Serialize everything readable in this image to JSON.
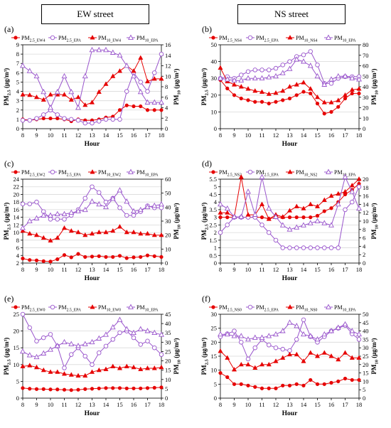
{
  "headers": {
    "left": "EW street",
    "right": "NS street"
  },
  "chart_data": [
    {
      "id": "a",
      "panel_label": "(a)",
      "type": "line",
      "x": [
        8,
        8.5,
        9,
        9.5,
        10,
        10.5,
        11,
        11.5,
        12,
        12.5,
        13,
        13.5,
        14,
        14.5,
        15,
        15.5,
        16,
        16.5,
        17,
        17.5,
        18
      ],
      "xlabel": "Hour",
      "ylabel_left": [
        "PM",
        "2.5",
        " (μg/m³)"
      ],
      "ylabel_right": [
        "PM",
        "10",
        " (μg/m³)"
      ],
      "ylim_left": [
        0,
        9
      ],
      "yticks_left": [
        0,
        1,
        2,
        3,
        4,
        5,
        6,
        7,
        8,
        9
      ],
      "ylim_right": [
        0,
        16
      ],
      "yticks_right": [
        0,
        2,
        4,
        6,
        8,
        10,
        12,
        14,
        16
      ],
      "legend": [
        [
          "PM",
          "2.5_EW4"
        ],
        [
          "PM",
          "2.5_EPA"
        ],
        [
          "PM",
          "10_EW4"
        ],
        [
          "PM",
          "10_EPA"
        ]
      ],
      "series": [
        {
          "color": "#e60000",
          "marker": "dot",
          "axis": "left",
          "values": [
            1.0,
            0.9,
            1.0,
            1.1,
            1.1,
            1.1,
            1.0,
            0.8,
            1.0,
            0.9,
            0.9,
            1.0,
            1.2,
            1.3,
            2.0,
            2.5,
            2.4,
            2.4,
            2.0,
            2.0,
            2.0
          ]
        },
        {
          "color": "#9955cc",
          "marker": "circle",
          "axis": "left",
          "values": [
            0.9,
            0.9,
            1.1,
            1.5,
            2.0,
            1.5,
            1.1,
            1.0,
            0.9,
            0.6,
            0.6,
            0.8,
            1.0,
            1.0,
            1.0,
            4.0,
            6.0,
            5.0,
            4.0,
            6.0,
            8.0
          ]
        },
        {
          "color": "#e60000",
          "marker": "triangle",
          "axis": "right",
          "values": [
            6.5,
            6.4,
            6.0,
            5.5,
            6.5,
            6.5,
            6.5,
            5.5,
            6.0,
            4.5,
            5.0,
            7.0,
            8.5,
            10.0,
            11.0,
            12.0,
            11.0,
            13.5,
            9.0,
            9.5,
            9.5
          ]
        },
        {
          "color": "#9955cc",
          "marker": "triangle-open",
          "axis": "right",
          "values": [
            12.0,
            11.0,
            10.0,
            7.0,
            4.0,
            7.0,
            10.0,
            7.0,
            4.0,
            10.0,
            15.0,
            15.0,
            15.0,
            14.5,
            14.0,
            12.0,
            10.0,
            7.0,
            5.0,
            5.0,
            5.0
          ]
        }
      ]
    },
    {
      "id": "b",
      "panel_label": "(b)",
      "type": "line",
      "x": [
        8,
        8.5,
        9,
        9.5,
        10,
        10.5,
        11,
        11.5,
        12,
        12.5,
        13,
        13.5,
        14,
        14.5,
        15,
        15.5,
        16,
        16.5,
        17,
        17.5,
        18
      ],
      "xlabel": "Hour",
      "ylabel_left": [
        "PM",
        "2.5",
        " (μg/m³)"
      ],
      "ylabel_right": [
        "PM",
        "10",
        " (μg/m³)"
      ],
      "ylim_left": [
        0,
        50
      ],
      "yticks_left": [
        0,
        10,
        20,
        30,
        40,
        50
      ],
      "ylim_right": [
        0,
        80
      ],
      "yticks_right": [
        0,
        10,
        20,
        30,
        40,
        50,
        60,
        70,
        80
      ],
      "legend": [
        [
          "PM",
          "2.5_NS4"
        ],
        [
          "PM",
          "2.5_EPA"
        ],
        [
          "PM",
          "10_NS4"
        ],
        [
          "PM",
          "10_EPA"
        ]
      ],
      "series": [
        {
          "color": "#e60000",
          "marker": "dot",
          "axis": "left",
          "values": [
            29,
            24,
            20,
            18,
            17,
            16,
            16,
            15,
            16,
            17,
            18,
            20,
            22,
            21,
            15,
            9,
            10,
            13,
            18,
            21,
            21
          ]
        },
        {
          "color": "#9955cc",
          "marker": "circle",
          "axis": "left",
          "values": [
            30,
            31,
            30,
            32,
            34,
            35,
            35,
            35,
            36,
            38,
            40,
            43,
            44,
            46,
            38,
            27,
            27,
            30,
            31,
            31,
            31
          ]
        },
        {
          "color": "#e60000",
          "marker": "triangle",
          "axis": "right",
          "values": [
            58,
            45,
            42,
            40,
            38,
            36,
            35,
            33,
            34,
            36,
            40,
            42,
            44,
            38,
            30,
            25,
            25,
            27,
            32,
            37,
            38
          ]
        },
        {
          "color": "#9955cc",
          "marker": "triangle-open",
          "axis": "right",
          "values": [
            48,
            47,
            46,
            46,
            48,
            48,
            48,
            49,
            50,
            53,
            57,
            66,
            64,
            60,
            50,
            42,
            47,
            50,
            50,
            48,
            47
          ]
        }
      ]
    },
    {
      "id": "c",
      "panel_label": "(c)",
      "type": "line",
      "x": [
        8,
        8.5,
        9,
        9.5,
        10,
        10.5,
        11,
        11.5,
        12,
        12.5,
        13,
        13.5,
        14,
        14.5,
        15,
        15.5,
        16,
        16.5,
        17,
        17.5,
        18
      ],
      "xlabel": "Hour",
      "ylabel_left": [
        "PM",
        "2.5",
        " (μg/m³)"
      ],
      "ylabel_right": [
        "PM",
        "10",
        " (μg/m³)"
      ],
      "ylim_left": [
        2,
        24
      ],
      "yticks_left": [
        2,
        4,
        6,
        8,
        10,
        12,
        14,
        16,
        18,
        20,
        22,
        24
      ],
      "ylim_right": [
        0,
        60
      ],
      "yticks_right": [
        0,
        10,
        20,
        30,
        40,
        50,
        60
      ],
      "legend": [
        [
          "PM",
          "2.5_EW2"
        ],
        [
          "PM",
          "2.5_EPA"
        ],
        [
          "PM",
          "10_EW2"
        ],
        [
          "PM",
          "10_EPA"
        ]
      ],
      "series": [
        {
          "color": "#e60000",
          "marker": "dot",
          "axis": "left",
          "values": [
            3.2,
            2.8,
            2.7,
            2.5,
            2.4,
            3.0,
            4.1,
            3.5,
            4.4,
            3.6,
            3.7,
            3.8,
            3.6,
            3.6,
            3.9,
            3.3,
            3.5,
            3.6,
            4.0,
            3.8,
            3.6
          ]
        },
        {
          "color": "#9955cc",
          "marker": "circle",
          "axis": "left",
          "values": [
            17.5,
            17.5,
            18.0,
            15.5,
            13.5,
            13.5,
            13.5,
            14.5,
            16.0,
            19.0,
            22.0,
            20.5,
            18.0,
            19.0,
            16.5,
            14.5,
            14.5,
            15.5,
            17.0,
            16.5,
            16.5
          ]
        },
        {
          "color": "#e60000",
          "marker": "triangle",
          "axis": "right",
          "values": [
            23,
            21,
            20,
            18,
            16,
            18,
            25,
            23,
            22,
            20,
            21,
            22,
            22,
            23,
            26,
            22,
            22,
            21,
            21,
            20,
            20
          ]
        },
        {
          "color": "#9955cc",
          "marker": "triangle-open",
          "axis": "right",
          "values": [
            25,
            30,
            32,
            34,
            34,
            35,
            35,
            36,
            37,
            38,
            44,
            42,
            40,
            46,
            52,
            44,
            37,
            38,
            40,
            41,
            42
          ]
        }
      ]
    },
    {
      "id": "d",
      "panel_label": "(d)",
      "type": "line",
      "x": [
        8,
        8.5,
        9,
        9.5,
        10,
        10.5,
        11,
        11.5,
        12,
        12.5,
        13,
        13.5,
        14,
        14.5,
        15,
        15.5,
        16,
        16.5,
        17,
        17.5,
        18
      ],
      "xlabel": "Hour",
      "ylabel_left": [
        "PM",
        "2.5",
        " (μg/m³)"
      ],
      "ylabel_right": [
        "PM",
        "10",
        " (μg/m³)"
      ],
      "ylim_left": [
        0,
        5.5
      ],
      "yticks_left": [
        0,
        0.5,
        1,
        1.5,
        2,
        2.5,
        3,
        3.5,
        4,
        4.5,
        5,
        5.5
      ],
      "ylim_right": [
        0,
        20
      ],
      "yticks_right": [
        0,
        2,
        4,
        6,
        8,
        10,
        12,
        14,
        16,
        18,
        20
      ],
      "legend": [
        [
          "PM",
          "2.5_NS2"
        ],
        [
          "PM",
          "2.5_EPA"
        ],
        [
          "PM",
          "10_NS2"
        ],
        [
          "PM",
          "10_EPA"
        ]
      ],
      "series": [
        {
          "color": "#e60000",
          "marker": "dot",
          "axis": "left",
          "values": [
            3.0,
            3.0,
            3.0,
            3.0,
            3.0,
            3.0,
            3.0,
            2.9,
            3.0,
            3.0,
            3.0,
            3.0,
            3.0,
            3.0,
            3.1,
            3.4,
            3.6,
            4.0,
            4.5,
            4.8,
            5.2
          ]
        },
        {
          "color": "#9955cc",
          "marker": "circle",
          "axis": "left",
          "values": [
            2.0,
            2.5,
            3.0,
            3.0,
            3.0,
            3.0,
            2.5,
            2.0,
            1.5,
            1.0,
            1.0,
            1.0,
            1.0,
            1.0,
            1.0,
            1.0,
            1.0,
            1.0,
            3.5,
            4.0,
            5.0
          ]
        },
        {
          "color": "#e60000",
          "marker": "triangle",
          "axis": "right",
          "values": [
            12.0,
            12.0,
            11.0,
            20.5,
            11.5,
            11.5,
            14.0,
            10.5,
            11.5,
            11.0,
            12.5,
            13.5,
            13.0,
            14.0,
            13.5,
            15.0,
            16.0,
            16.5,
            17.0,
            18.5,
            20.0
          ]
        },
        {
          "color": "#9955cc",
          "marker": "triangle-open",
          "axis": "right",
          "values": [
            14.0,
            13.0,
            11.0,
            11.0,
            17.0,
            11.5,
            20.5,
            13.0,
            11.0,
            9.0,
            8.0,
            8.5,
            9.0,
            9.5,
            10.0,
            9.5,
            9.0,
            14.0,
            20.5,
            17.0,
            13.0
          ]
        }
      ]
    },
    {
      "id": "e",
      "panel_label": "(e)",
      "type": "line",
      "x": [
        8,
        8.5,
        9,
        9.5,
        10,
        10.5,
        11,
        11.5,
        12,
        12.5,
        13,
        13.5,
        14,
        14.5,
        15,
        15.5,
        16,
        16.5,
        17,
        17.5,
        18
      ],
      "xlabel": "Hour",
      "ylabel_left": [
        "PM",
        "2.5",
        " (μg/m³)"
      ],
      "ylabel_right": [
        "PM",
        "10",
        " (μg/m³)"
      ],
      "ylim_left": [
        0,
        25
      ],
      "yticks_left": [
        0,
        5,
        10,
        15,
        20,
        25
      ],
      "ylim_right": [
        0,
        45
      ],
      "yticks_right": [
        0,
        5,
        10,
        15,
        20,
        25,
        30,
        35,
        40,
        45
      ],
      "legend": [
        [
          "PM",
          "2.5_EW0"
        ],
        [
          "PM",
          "2.5_EPA"
        ],
        [
          "PM",
          "10_EW0"
        ],
        [
          "PM",
          "10_EPA"
        ]
      ],
      "series": [
        {
          "color": "#e60000",
          "marker": "dot",
          "axis": "left",
          "values": [
            3.0,
            2.8,
            2.7,
            2.7,
            2.6,
            2.6,
            2.5,
            2.4,
            2.5,
            2.7,
            2.8,
            2.9,
            3.0,
            3.0,
            3.0,
            2.9,
            2.9,
            2.9,
            3.0,
            3.1,
            3.2
          ]
        },
        {
          "color": "#9955cc",
          "marker": "circle",
          "axis": "left",
          "values": [
            25.0,
            21.0,
            17.0,
            18.0,
            19.0,
            15.5,
            9.0,
            13.0,
            15.0,
            12.5,
            10.0,
            13.5,
            15.5,
            17.5,
            19.5,
            20.0,
            18.0,
            16.0,
            17.0,
            15.0,
            13.0
          ]
        },
        {
          "color": "#e60000",
          "marker": "triangle",
          "axis": "right",
          "values": [
            17.0,
            17.5,
            16.5,
            15.0,
            14.0,
            14.0,
            13.0,
            12.5,
            12.0,
            12.0,
            14.0,
            15.0,
            15.5,
            17.0,
            16.0,
            17.0,
            16.5,
            15.5,
            16.0,
            16.0,
            16.5
          ]
        },
        {
          "color": "#9955cc",
          "marker": "triangle-open",
          "axis": "right",
          "values": [
            25.0,
            23.0,
            22.0,
            24.0,
            26.0,
            28.0,
            30.0,
            29.0,
            28.0,
            29.0,
            30.0,
            32.0,
            34.0,
            38.0,
            42.0,
            37.0,
            35.0,
            37.0,
            36.0,
            35.0,
            34.0
          ]
        }
      ]
    },
    {
      "id": "f",
      "panel_label": "(f)",
      "type": "line",
      "x": [
        8,
        8.5,
        9,
        9.5,
        10,
        10.5,
        11,
        11.5,
        12,
        12.5,
        13,
        13.5,
        14,
        14.5,
        15,
        15.5,
        16,
        16.5,
        17,
        17.5,
        18
      ],
      "xlabel": "Hour",
      "ylabel_left": [
        "PM",
        "2.5",
        " (μg/m³)"
      ],
      "ylabel_right": [
        "PM",
        "10",
        " (μg/m³)"
      ],
      "ylim_left": [
        0,
        30
      ],
      "yticks_left": [
        0,
        5,
        10,
        15,
        20,
        25,
        30
      ],
      "ylim_right": [
        0,
        50
      ],
      "yticks_right": [
        0,
        5,
        10,
        15,
        20,
        25,
        30,
        35,
        40,
        45,
        50
      ],
      "legend": [
        [
          "PM",
          "2.5_NS0"
        ],
        [
          "PM",
          "2.5_EPA"
        ],
        [
          "PM",
          "10_NS0"
        ],
        [
          "PM",
          "10_EPA"
        ]
      ],
      "series": [
        {
          "color": "#e60000",
          "marker": "dot",
          "axis": "left",
          "values": [
            9.0,
            7.5,
            5.0,
            5.0,
            4.5,
            4.0,
            3.5,
            3.5,
            3.5,
            4.5,
            4.5,
            5.0,
            4.5,
            6.5,
            5.0,
            5.0,
            5.5,
            6.0,
            7.0,
            6.5,
            6.5
          ]
        },
        {
          "color": "#9955cc",
          "marker": "circle",
          "axis": "left",
          "values": [
            22.0,
            23.0,
            24.0,
            20.0,
            14.0,
            18.0,
            21.0,
            19.0,
            18.0,
            17.5,
            17.0,
            21.0,
            28.0,
            22.0,
            20.0,
            22.0,
            24.0,
            25.0,
            26.0,
            23.0,
            21.0
          ]
        },
        {
          "color": "#e60000",
          "marker": "triangle",
          "axis": "right",
          "values": [
            28,
            24,
            17,
            20,
            20,
            18,
            20,
            20,
            22,
            24,
            26,
            26,
            22,
            27,
            25,
            27,
            25,
            23,
            27,
            24,
            24
          ]
        },
        {
          "color": "#9955cc",
          "marker": "triangle-open",
          "axis": "right",
          "values": [
            38,
            38,
            37,
            37,
            35,
            36,
            36,
            37,
            38,
            40,
            45,
            43,
            38,
            37,
            35,
            38,
            40,
            42,
            44,
            40,
            38
          ]
        }
      ]
    }
  ]
}
